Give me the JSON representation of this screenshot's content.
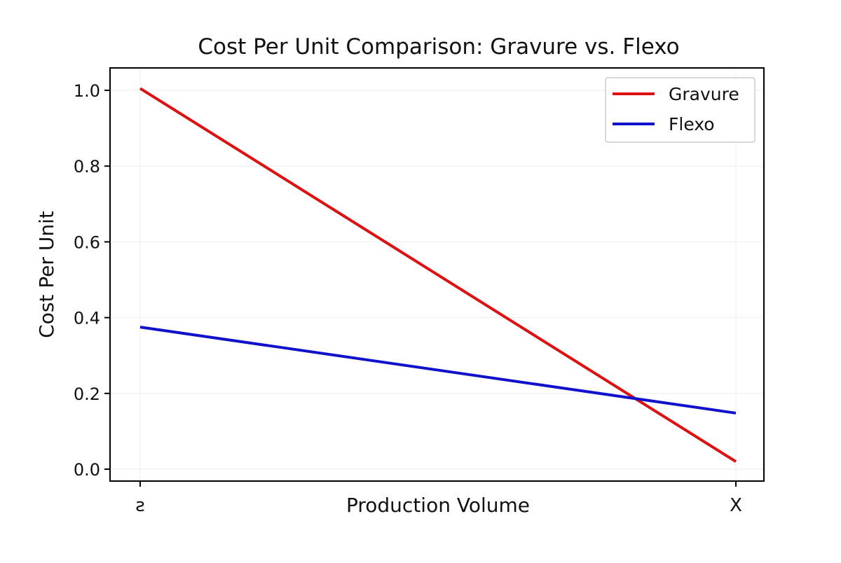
{
  "chart_data": {
    "type": "line",
    "title": "Cost Per Unit Comparison: Gravure vs. Flexo",
    "xlabel": "Production Volume",
    "ylabel": "Cost Per Unit",
    "x_tick_labels": [
      "ƨ",
      "X"
    ],
    "x": [
      0,
      1
    ],
    "y_ticks": [
      "0.0",
      "0.2",
      "0.4",
      "0.6",
      "0.8",
      "1.0"
    ],
    "ylim": [
      -0.03,
      1.06
    ],
    "grid": true,
    "legend_position": "top-right",
    "series": [
      {
        "name": "Gravure",
        "color": "#dd1111",
        "values": [
          1.005,
          0.02
        ]
      },
      {
        "name": "Flexo",
        "color": "#1111cc",
        "values": [
          0.375,
          0.148
        ]
      }
    ]
  }
}
